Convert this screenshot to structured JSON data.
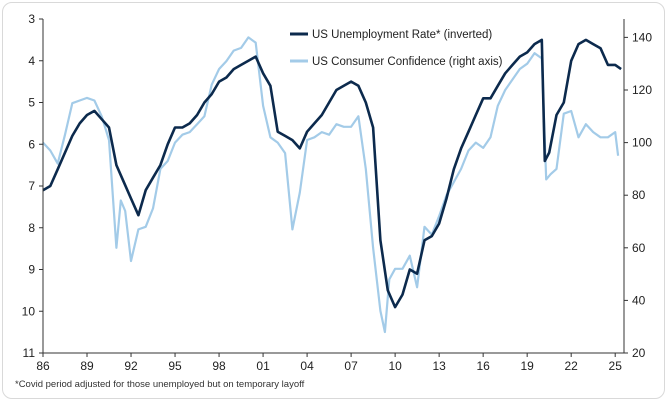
{
  "chart_data": {
    "type": "line",
    "title": "",
    "xlabel": "",
    "ylabel": "",
    "grid": false,
    "legend_position": "top-right",
    "colors": {
      "unemployment": "#0c2a4d",
      "confidence": "#a3cbe8"
    },
    "x_ticks": [
      "86",
      "89",
      "92",
      "95",
      "98",
      "01",
      "04",
      "07",
      "10",
      "13",
      "16",
      "19",
      "22",
      "25"
    ],
    "left_axis": {
      "ticks": [
        "3",
        "4",
        "5",
        "6",
        "7",
        "8",
        "9",
        "10",
        "11"
      ],
      "ylim": [
        3,
        11
      ],
      "inverted": true
    },
    "right_axis": {
      "ticks": [
        "20",
        "40",
        "60",
        "80",
        "100",
        "120",
        "140"
      ],
      "ylim": [
        20,
        147
      ]
    },
    "x_range": [
      1986.0,
      2025.6
    ],
    "footnote": "*Covid period adjusted for those unemployed but on temporary layoff",
    "series": [
      {
        "name": "US Unemployment Rate* (inverted)",
        "axis": "left",
        "x": [
          1986.0,
          1986.5,
          1987.0,
          1987.5,
          1988.0,
          1988.5,
          1989.0,
          1989.5,
          1990.0,
          1990.5,
          1991.0,
          1991.5,
          1992.0,
          1992.5,
          1993.0,
          1993.5,
          1994.0,
          1994.5,
          1995.0,
          1995.5,
          1996.0,
          1996.5,
          1997.0,
          1997.5,
          1998.0,
          1998.5,
          1999.0,
          1999.5,
          2000.0,
          2000.5,
          2001.0,
          2001.5,
          2002.0,
          2002.5,
          2003.0,
          2003.5,
          2004.0,
          2004.5,
          2005.0,
          2005.5,
          2006.0,
          2006.5,
          2007.0,
          2007.5,
          2008.0,
          2008.5,
          2009.0,
          2009.5,
          2010.0,
          2010.5,
          2011.0,
          2011.5,
          2012.0,
          2012.5,
          2013.0,
          2013.5,
          2014.0,
          2014.5,
          2015.0,
          2015.5,
          2016.0,
          2016.5,
          2017.0,
          2017.5,
          2018.0,
          2018.5,
          2019.0,
          2019.5,
          2020.0,
          2020.2,
          2020.5,
          2021.0,
          2021.5,
          2022.0,
          2022.5,
          2023.0,
          2023.5,
          2024.0,
          2024.5,
          2025.0,
          2025.4
        ],
        "values": [
          7.1,
          7.0,
          6.6,
          6.2,
          5.8,
          5.5,
          5.3,
          5.2,
          5.4,
          5.6,
          6.5,
          6.9,
          7.3,
          7.7,
          7.1,
          6.8,
          6.5,
          6.0,
          5.6,
          5.6,
          5.5,
          5.3,
          5.0,
          4.8,
          4.5,
          4.4,
          4.2,
          4.1,
          4.0,
          3.9,
          4.3,
          4.6,
          5.7,
          5.8,
          5.9,
          6.1,
          5.7,
          5.5,
          5.3,
          5.0,
          4.7,
          4.6,
          4.5,
          4.6,
          5.0,
          5.6,
          8.3,
          9.5,
          9.9,
          9.6,
          9.0,
          9.1,
          8.3,
          8.2,
          7.9,
          7.3,
          6.6,
          6.1,
          5.7,
          5.3,
          4.9,
          4.9,
          4.6,
          4.3,
          4.1,
          3.9,
          3.8,
          3.6,
          3.5,
          6.4,
          6.2,
          5.3,
          5.0,
          4.0,
          3.6,
          3.5,
          3.6,
          3.7,
          4.1,
          4.1,
          4.2
        ]
      },
      {
        "name": "US Consumer Confidence (right axis)",
        "axis": "right",
        "x": [
          1986.0,
          1986.5,
          1987.0,
          1987.5,
          1988.0,
          1988.5,
          1989.0,
          1989.5,
          1990.0,
          1990.5,
          1991.0,
          1991.3,
          1991.6,
          1992.0,
          1992.5,
          1993.0,
          1993.5,
          1994.0,
          1994.5,
          1995.0,
          1995.5,
          1996.0,
          1996.5,
          1997.0,
          1997.5,
          1998.0,
          1998.5,
          1999.0,
          1999.5,
          2000.0,
          2000.5,
          2001.0,
          2001.5,
          2002.0,
          2002.5,
          2003.0,
          2003.5,
          2004.0,
          2004.5,
          2005.0,
          2005.5,
          2006.0,
          2006.5,
          2007.0,
          2007.5,
          2008.0,
          2008.5,
          2009.0,
          2009.3,
          2009.6,
          2010.0,
          2010.5,
          2011.0,
          2011.5,
          2012.0,
          2012.5,
          2013.0,
          2013.5,
          2014.0,
          2014.5,
          2015.0,
          2015.5,
          2016.0,
          2016.5,
          2017.0,
          2017.5,
          2018.0,
          2018.5,
          2019.0,
          2019.5,
          2020.0,
          2020.3,
          2020.6,
          2021.0,
          2021.5,
          2022.0,
          2022.5,
          2023.0,
          2023.5,
          2024.0,
          2024.5,
          2025.0,
          2025.2
        ],
        "values": [
          100,
          97,
          92,
          103,
          115,
          116,
          117,
          116,
          110,
          101,
          60,
          78,
          74,
          55,
          67,
          68,
          75,
          90,
          93,
          100,
          103,
          104,
          107,
          110,
          122,
          128,
          131,
          135,
          136,
          140,
          138,
          114,
          102,
          100,
          96,
          67,
          81,
          101,
          102,
          104,
          103,
          107,
          106,
          106,
          110,
          90,
          60,
          36,
          28,
          48,
          52,
          52,
          57,
          45,
          68,
          65,
          72,
          80,
          85,
          90,
          97,
          100,
          98,
          102,
          114,
          120,
          124,
          128,
          130,
          134,
          132,
          86,
          88,
          90,
          111,
          112,
          102,
          107,
          104,
          102,
          102,
          104,
          95
        ]
      }
    ]
  }
}
